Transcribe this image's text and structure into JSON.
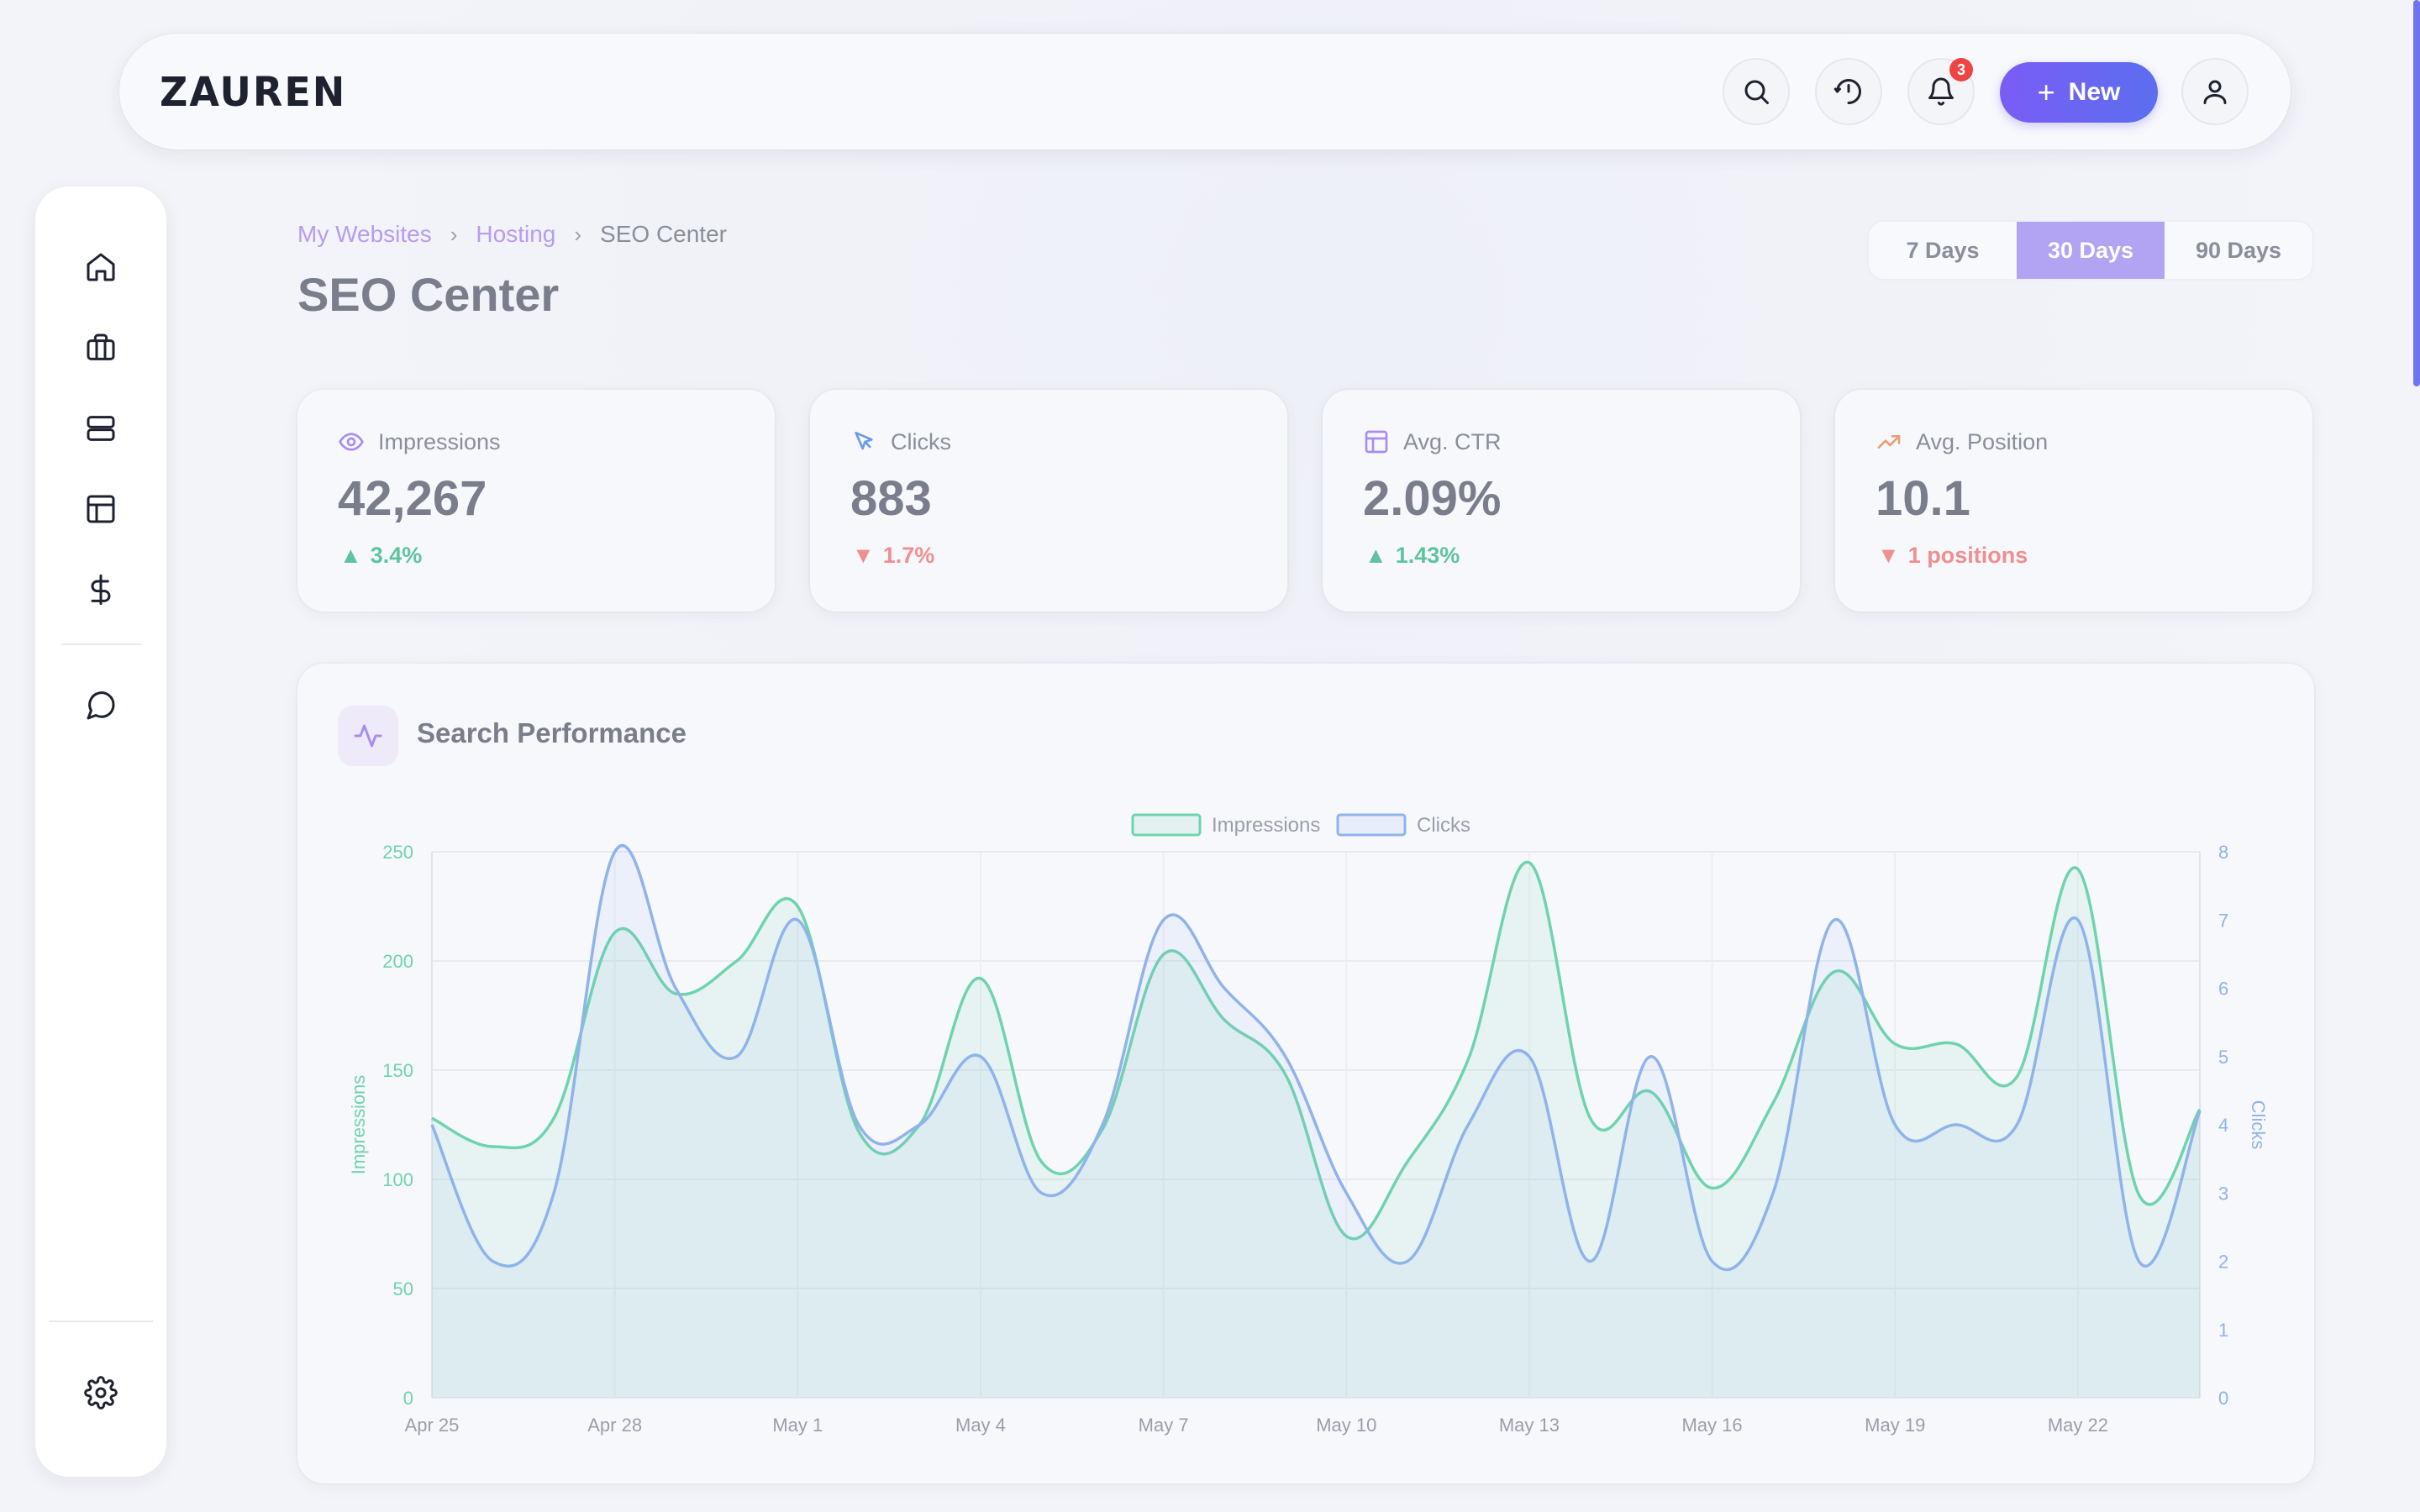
{
  "app": {
    "logo": "ZAUREN"
  },
  "topbar": {
    "notification_count": "3",
    "new_label": "New"
  },
  "breadcrumb": {
    "items": [
      "My Websites",
      "Hosting"
    ],
    "current": "SEO Center",
    "separator": "›"
  },
  "page": {
    "title": "SEO Center"
  },
  "range": {
    "options": [
      "7 Days",
      "30 Days",
      "90 Days"
    ],
    "selected": "30 Days"
  },
  "stats": [
    {
      "label": "Impressions",
      "value": "42,267",
      "delta": "3.4%",
      "direction": "up",
      "icon": "eye-icon"
    },
    {
      "label": "Clicks",
      "value": "883",
      "delta": "1.7%",
      "direction": "down",
      "icon": "cursor-icon"
    },
    {
      "label": "Avg. CTR",
      "value": "2.09%",
      "delta": "1.43%",
      "direction": "up",
      "icon": "layout-icon"
    },
    {
      "label": "Avg. Position",
      "value": "10.1",
      "delta": "1 positions",
      "direction": "down",
      "icon": "trending-up-icon"
    }
  ],
  "colors": {
    "accent": "#7b5cf5",
    "impressions": "#6fd3ae",
    "clicks": "#8fb3ea",
    "up": "#5fc3a0",
    "down": "#ef8f8f"
  },
  "chart_card": {
    "title": "Search Performance"
  },
  "chart_data": {
    "type": "line",
    "title": "",
    "x": [
      "Apr 25",
      "Apr 26",
      "Apr 27",
      "Apr 28",
      "Apr 29",
      "Apr 30",
      "May 1",
      "May 2",
      "May 3",
      "May 4",
      "May 5",
      "May 6",
      "May 7",
      "May 8",
      "May 9",
      "May 10",
      "May 11",
      "May 12",
      "May 13",
      "May 14",
      "May 15",
      "May 16",
      "May 17",
      "May 18",
      "May 19",
      "May 20",
      "May 21",
      "May 22",
      "May 23",
      "May 24"
    ],
    "x_tick_labels": [
      "Apr 25",
      "Apr 28",
      "May 1",
      "May 4",
      "May 7",
      "May 10",
      "May 13",
      "May 16",
      "May 19",
      "May 22"
    ],
    "series": [
      {
        "name": "Impressions",
        "axis": "left",
        "fill": true,
        "values": [
          128,
          115,
          128,
          213,
          185,
          200,
          225,
          122,
          125,
          192,
          108,
          123,
          203,
          173,
          148,
          74,
          108,
          155,
          245,
          128,
          140,
          96,
          135,
          195,
          162,
          162,
          147,
          242,
          93,
          132
        ]
      },
      {
        "name": "Clicks",
        "axis": "right",
        "fill": true,
        "values": [
          4,
          2,
          3,
          8,
          6,
          5,
          7,
          4,
          4,
          5,
          3,
          4,
          7,
          6,
          5,
          3,
          2,
          4,
          5,
          2,
          5,
          2,
          3,
          7,
          4,
          4,
          4,
          7,
          2,
          4.2
        ]
      }
    ],
    "ylabel": "Impressions",
    "ylabel_right": "Clicks",
    "ylim": [
      0,
      250
    ],
    "yticks": [
      0,
      50,
      100,
      150,
      200,
      250
    ],
    "ylim_right": [
      0,
      8
    ],
    "yticks_right": [
      0,
      1,
      2,
      3,
      4,
      5,
      6,
      7,
      8
    ],
    "grid": true,
    "legend": "top-center"
  }
}
